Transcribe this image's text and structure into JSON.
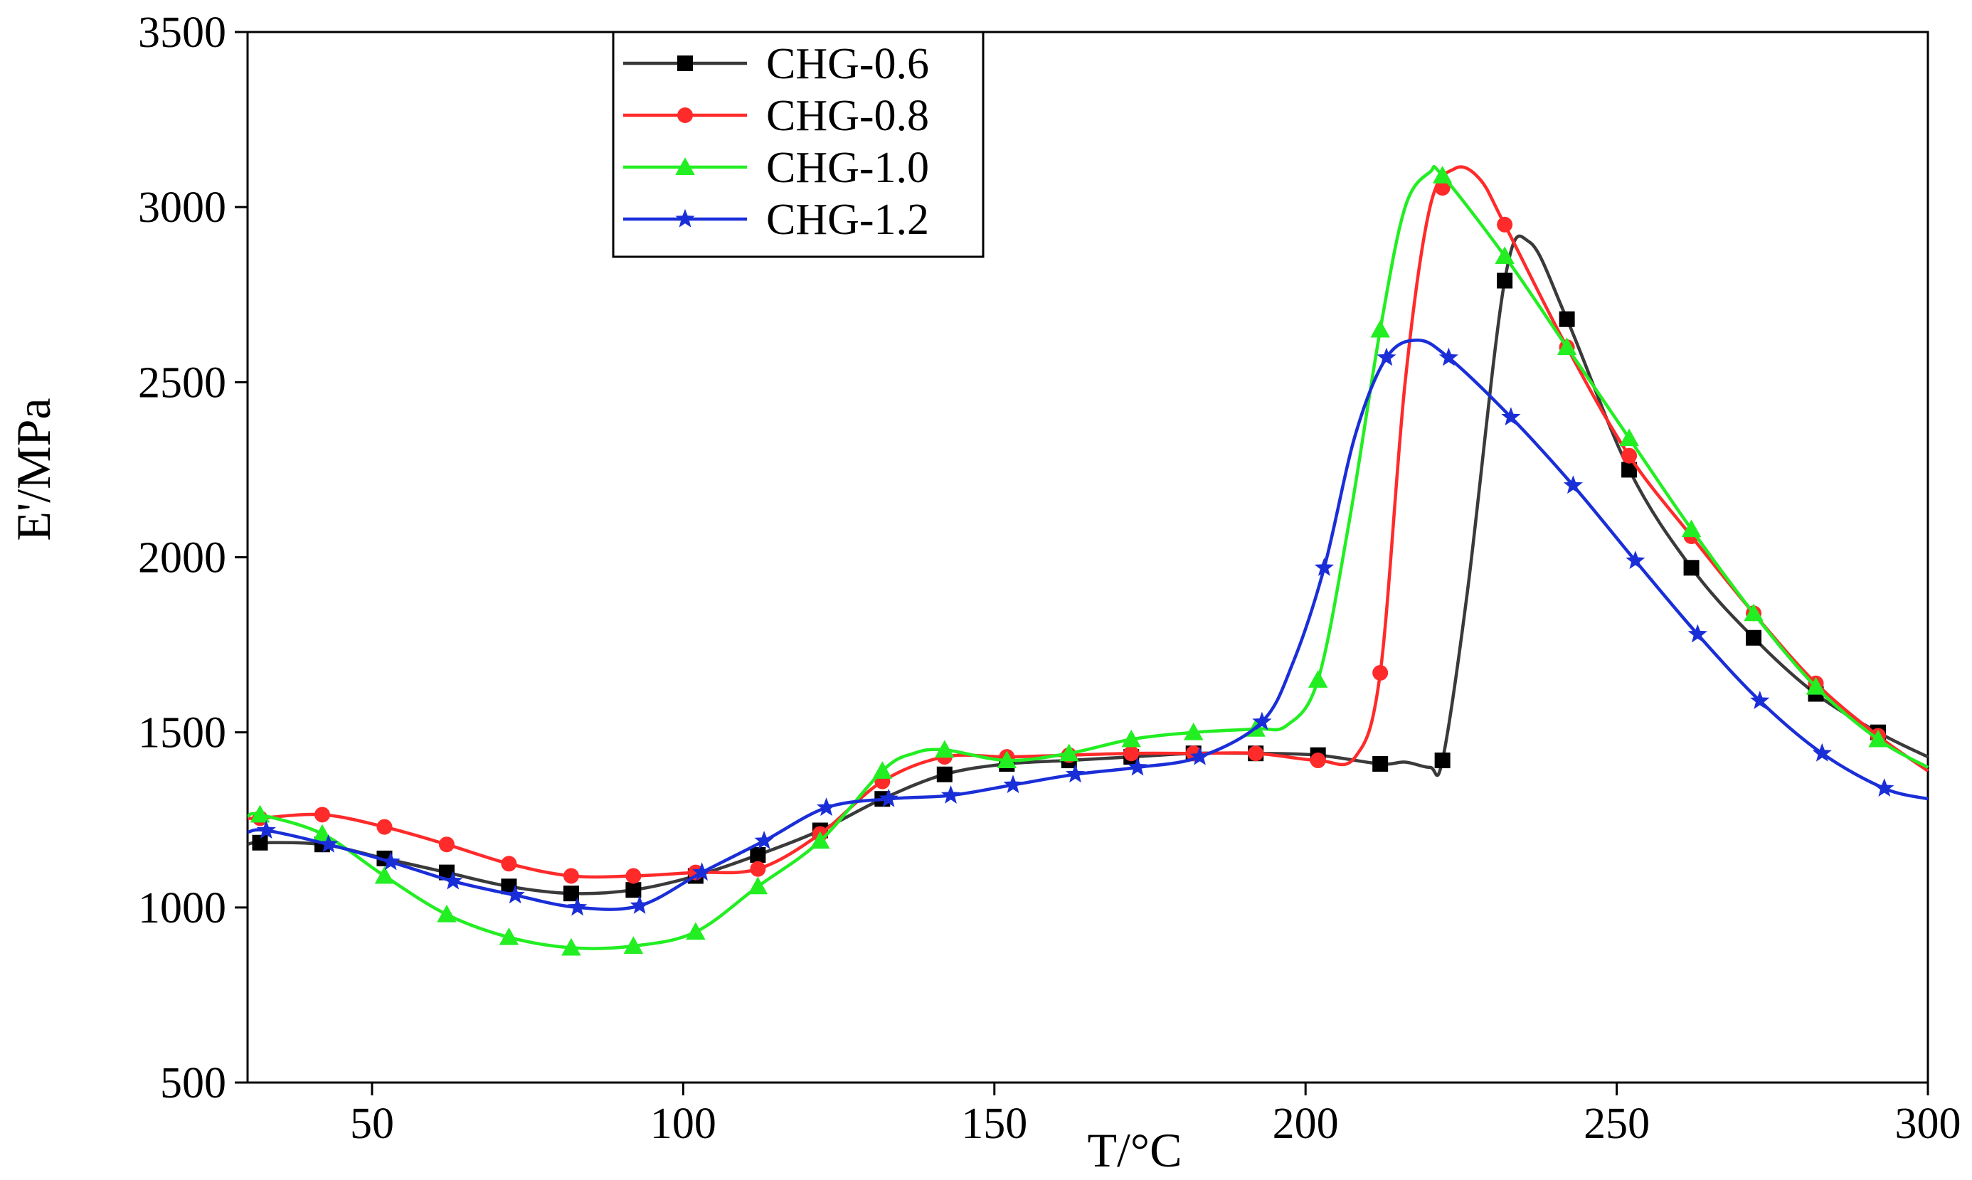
{
  "chart_data": {
    "type": "line",
    "title": "",
    "xlabel": "T/°C",
    "ylabel": "E'/MPa",
    "xlim": [
      30,
      300
    ],
    "ylim": [
      500,
      3500
    ],
    "xticks": [
      50,
      100,
      150,
      200,
      250,
      300
    ],
    "yticks": [
      500,
      1000,
      1500,
      2000,
      2500,
      3000,
      3500
    ],
    "legend_position": "top-left",
    "series": [
      {
        "name": "CHG-0.6",
        "color": "#3a3a3a",
        "marker": "square",
        "x": [
          30,
          32,
          42,
          52,
          62,
          72,
          82,
          92,
          102,
          112,
          122,
          132,
          142,
          152,
          162,
          172,
          182,
          192,
          202,
          212,
          216,
          220,
          222,
          226,
          232,
          236,
          242,
          252,
          262,
          272,
          282,
          292,
          300
        ],
        "y": [
          1180,
          1185,
          1180,
          1140,
          1100,
          1060,
          1040,
          1050,
          1090,
          1150,
          1220,
          1310,
          1380,
          1410,
          1420,
          1430,
          1440,
          1440,
          1435,
          1410,
          1415,
          1400,
          1420,
          1900,
          2790,
          2900,
          2680,
          2250,
          1970,
          1770,
          1610,
          1500,
          1430
        ],
        "marker_x": [
          32,
          42,
          52,
          62,
          72,
          82,
          92,
          102,
          112,
          122,
          132,
          142,
          152,
          162,
          172,
          182,
          192,
          202,
          212,
          222,
          232,
          242,
          252,
          262,
          272,
          282,
          292
        ]
      },
      {
        "name": "CHG-0.8",
        "color": "#ff2a2a",
        "marker": "circle",
        "x": [
          30,
          32,
          42,
          52,
          62,
          72,
          82,
          92,
          102,
          112,
          122,
          132,
          142,
          152,
          162,
          172,
          182,
          192,
          202,
          208,
          212,
          216,
          220,
          224,
          228,
          232,
          242,
          252,
          262,
          272,
          282,
          292,
          300
        ],
        "y": [
          1255,
          1255,
          1265,
          1230,
          1180,
          1125,
          1090,
          1090,
          1100,
          1110,
          1210,
          1360,
          1430,
          1430,
          1435,
          1440,
          1440,
          1440,
          1420,
          1430,
          1670,
          2500,
          3000,
          3110,
          3080,
          2950,
          2600,
          2290,
          2060,
          1840,
          1640,
          1490,
          1390
        ],
        "marker_x": [
          32,
          42,
          52,
          62,
          72,
          82,
          92,
          102,
          112,
          122,
          132,
          142,
          152,
          162,
          172,
          182,
          192,
          202,
          212,
          222,
          232,
          242,
          252,
          262,
          272,
          282,
          292
        ]
      },
      {
        "name": "CHG-1.0",
        "color": "#22ee22",
        "marker": "triangle",
        "x": [
          30,
          32,
          42,
          52,
          62,
          72,
          82,
          92,
          102,
          112,
          122,
          132,
          137,
          142,
          152,
          162,
          172,
          182,
          192,
          197,
          202,
          207,
          212,
          216,
          220,
          222,
          232,
          242,
          252,
          262,
          272,
          282,
          292,
          300
        ],
        "y": [
          1260,
          1265,
          1210,
          1090,
          980,
          915,
          885,
          890,
          930,
          1060,
          1190,
          1390,
          1440,
          1450,
          1420,
          1440,
          1480,
          1500,
          1510,
          1520,
          1650,
          2100,
          2650,
          3000,
          3100,
          3090,
          2860,
          2600,
          2340,
          2080,
          1840,
          1630,
          1480,
          1400
        ],
        "marker_x": [
          32,
          42,
          52,
          62,
          72,
          82,
          92,
          102,
          112,
          122,
          132,
          142,
          152,
          162,
          172,
          182,
          192,
          202,
          212,
          222,
          232,
          242,
          252,
          262,
          272,
          282,
          292
        ]
      },
      {
        "name": "CHG-1.2",
        "color": "#1a2ed8",
        "marker": "star",
        "x": [
          30,
          33,
          43,
          53,
          63,
          73,
          83,
          93,
          103,
          113,
          123,
          133,
          143,
          153,
          163,
          173,
          183,
          193,
          198,
          203,
          208,
          213,
          218,
          223,
          233,
          243,
          253,
          263,
          273,
          283,
          293,
          300
        ],
        "y": [
          1215,
          1220,
          1180,
          1130,
          1075,
          1035,
          1000,
          1005,
          1100,
          1190,
          1285,
          1310,
          1320,
          1350,
          1380,
          1400,
          1430,
          1530,
          1700,
          1970,
          2350,
          2570,
          2620,
          2570,
          2400,
          2205,
          1990,
          1780,
          1590,
          1440,
          1340,
          1310
        ],
        "marker_x": [
          33,
          43,
          53,
          63,
          73,
          83,
          93,
          103,
          113,
          123,
          133,
          143,
          153,
          163,
          173,
          183,
          193,
          203,
          213,
          223,
          233,
          243,
          253,
          263,
          273,
          283,
          293
        ]
      }
    ]
  }
}
